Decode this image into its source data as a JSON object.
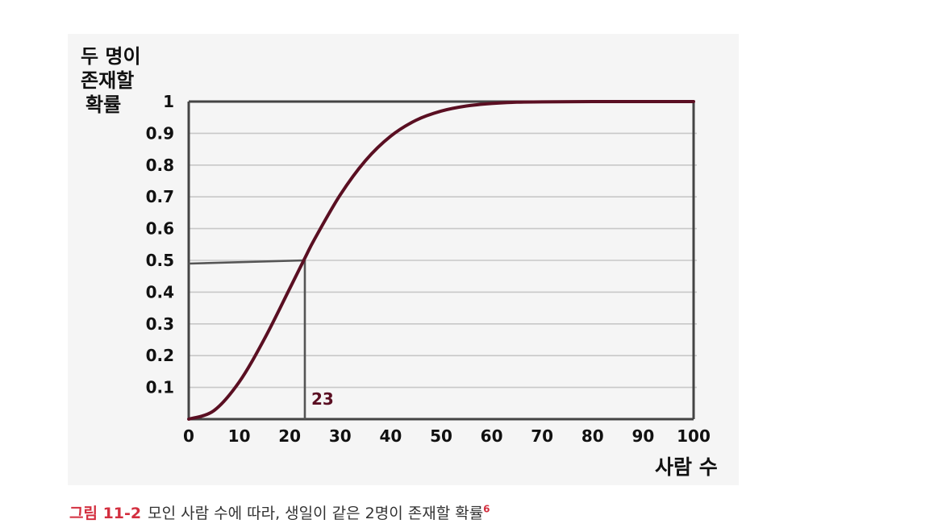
{
  "chart_data": {
    "type": "line",
    "ylabel_lines": [
      "두 명이",
      "존재할",
      "확률"
    ],
    "xlabel": "사람 수",
    "xlim": [
      0,
      100
    ],
    "ylim": [
      0,
      1
    ],
    "x_ticks": [
      0,
      10,
      20,
      30,
      40,
      50,
      60,
      70,
      80,
      90,
      100
    ],
    "y_ticks": [
      "0.1",
      "0.2",
      "0.3",
      "0.4",
      "0.5",
      "0.6",
      "0.7",
      "0.8",
      "0.9",
      "1"
    ],
    "y_tick_values": [
      0.1,
      0.2,
      0.3,
      0.4,
      0.5,
      0.6,
      0.7,
      0.8,
      0.9,
      1.0
    ],
    "grid": "horizontal",
    "line_color": "#5a0f22",
    "series": [
      {
        "x": [
          0,
          5,
          10,
          15,
          20,
          23,
          25,
          30,
          35,
          40,
          45,
          50,
          55,
          60,
          65,
          70,
          80,
          90,
          100
        ],
        "values": [
          0,
          0.027,
          0.117,
          0.253,
          0.411,
          0.507,
          0.569,
          0.706,
          0.814,
          0.891,
          0.941,
          0.97,
          0.986,
          0.994,
          0.998,
          0.999,
          1.0,
          1.0,
          1.0
        ]
      }
    ],
    "annotation": {
      "x": 23,
      "y": 0.5,
      "label": "23"
    }
  },
  "caption": {
    "label": "그림 11-2",
    "text": "모인 사람 수에 따라, 생일이 같은 2명이 존재할 확률",
    "note": "6"
  }
}
